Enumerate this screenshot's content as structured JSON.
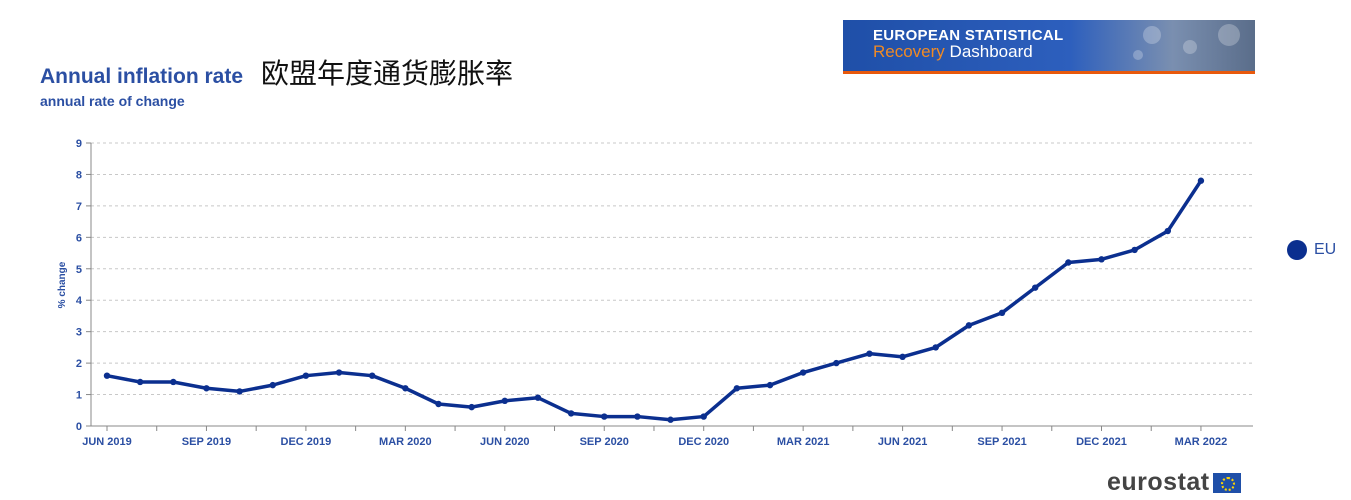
{
  "header": {
    "title": "Annual inflation rate",
    "title_cn": "欧盟年度通货膨胀率",
    "subtitle": "annual rate of change"
  },
  "banner": {
    "line1": "EUROPEAN STATISTICAL",
    "line2a": "Recovery",
    "line2b": " Dashboard"
  },
  "footer": {
    "brand": "eurostat",
    "flag_icon": "eu-flag-icon"
  },
  "colors": {
    "series": "#0b2f8f",
    "axis_text": "#2b4fa3",
    "grid": "#c8c8c8"
  },
  "chart_data": {
    "type": "line",
    "title": "Annual inflation rate",
    "ylabel": "% change",
    "xlabel": "",
    "ylim": [
      0,
      9
    ],
    "yticks": [
      0,
      1,
      2,
      3,
      4,
      5,
      6,
      7,
      8,
      9
    ],
    "grid": true,
    "legend_position": "right",
    "x": [
      "2019-06",
      "2019-07",
      "2019-08",
      "2019-09",
      "2019-10",
      "2019-11",
      "2019-12",
      "2020-01",
      "2020-02",
      "2020-03",
      "2020-04",
      "2020-05",
      "2020-06",
      "2020-07",
      "2020-08",
      "2020-09",
      "2020-10",
      "2020-11",
      "2020-12",
      "2021-01",
      "2021-02",
      "2021-03",
      "2021-04",
      "2021-05",
      "2021-06",
      "2021-07",
      "2021-08",
      "2021-09",
      "2021-10",
      "2021-11",
      "2021-12",
      "2022-01",
      "2022-02",
      "2022-03"
    ],
    "xtick_labels": [
      "JUN 2019",
      "SEP 2019",
      "DEC 2019",
      "MAR 2020",
      "JUN 2020",
      "SEP 2020",
      "DEC 2020",
      "MAR 2021",
      "JUN 2021",
      "SEP 2021",
      "DEC 2021",
      "MAR 2022"
    ],
    "series": [
      {
        "name": "EU",
        "color": "#0b2f8f",
        "values": [
          1.6,
          1.4,
          1.4,
          1.2,
          1.1,
          1.3,
          1.6,
          1.7,
          1.6,
          1.2,
          0.7,
          0.6,
          0.8,
          0.9,
          0.4,
          0.3,
          0.3,
          0.2,
          0.3,
          1.2,
          1.3,
          1.7,
          2.0,
          2.3,
          2.2,
          2.5,
          3.2,
          3.6,
          4.4,
          5.2,
          5.3,
          5.6,
          6.2,
          7.8
        ]
      }
    ]
  }
}
